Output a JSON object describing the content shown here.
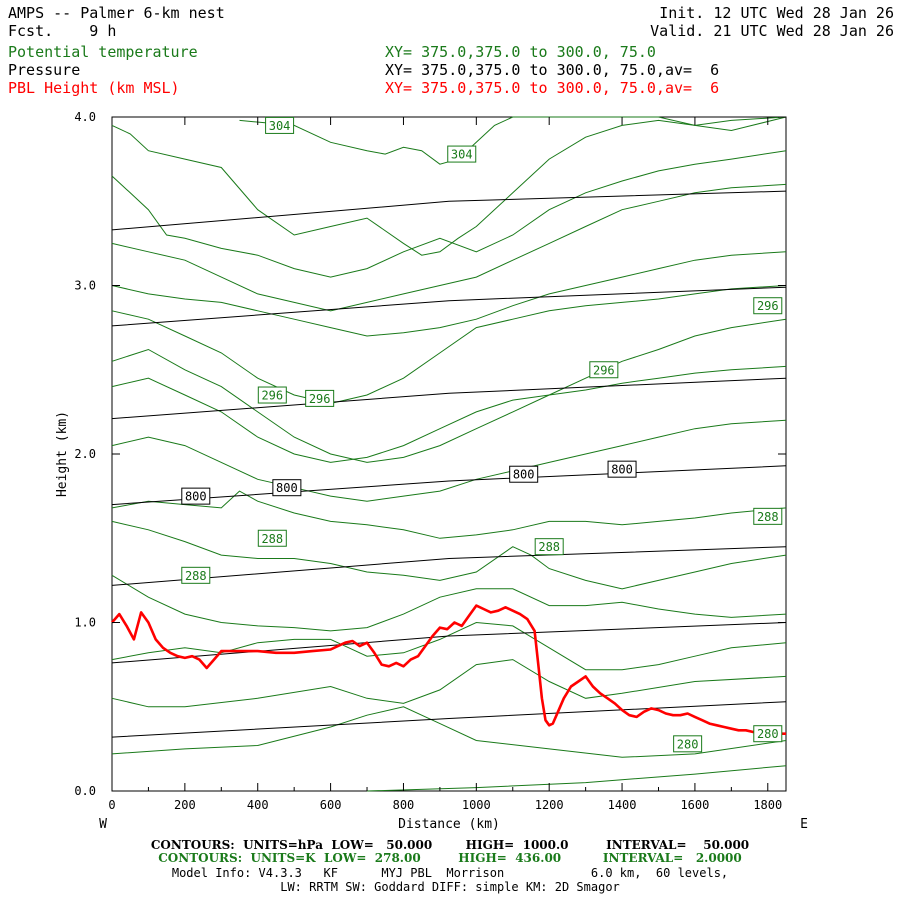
{
  "header": {
    "title": "AMPS -- Palmer 6-km nest",
    "fcst": "Fcst.    9 h",
    "init": "Init. 12 UTC Wed 28 Jan 26",
    "valid": "Valid. 21 UTC Wed 28 Jan 26"
  },
  "legend": [
    {
      "name": "Potential temperature",
      "xy": "XY= 375.0,375.0 to 300.0, 75.0",
      "color": "#1a7a1a"
    },
    {
      "name": "Pressure",
      "xy": "XY= 375.0,375.0 to 300.0, 75.0,av=  6",
      "color": "#000000"
    },
    {
      "name": "PBL Height (km MSL)",
      "xy": "XY= 375.0,375.0 to 300.0, 75.0,av=  6",
      "color": "#ff0000"
    }
  ],
  "footer": {
    "pressure_contours": "CONTOURS:  UNITS=hPa  LOW=   50.000        HIGH=  1000.0         INTERVAL=    50.000",
    "theta_contours": "CONTOURS:  UNITS=K  LOW=  278.00         HIGH=  436.00          INTERVAL=   2.0000",
    "model_info": "Model Info: V4.3.3   KF      MYJ PBL  Morrison            6.0 km,  60 levels,",
    "physics": "LW: RRTM SW: Goddard DIFF: simple KM: 2D Smagor"
  },
  "chart_data": {
    "type": "line",
    "xlabel": "Distance (km)",
    "ylabel": "Height (km)",
    "xlim": [
      0,
      1850
    ],
    "ylim": [
      0,
      4.0
    ],
    "x_ticks": [
      0,
      200,
      400,
      600,
      800,
      1000,
      1200,
      1400,
      1600,
      1800
    ],
    "y_ticks": [
      "0.0",
      "1.0",
      "2.0",
      "3.0",
      "4.0"
    ],
    "y_tick_values": [
      0,
      1,
      2,
      3,
      4
    ],
    "left_end": "W",
    "right_end": "E",
    "colors": {
      "theta": "#1a7a1a",
      "pressure": "#000000",
      "pbl": "#ff0000"
    },
    "pressure_lines": [
      {
        "y": [
          0.32,
          0.43,
          0.53
        ]
      },
      {
        "y": [
          0.76,
          0.92,
          1.0
        ]
      },
      {
        "y": [
          1.22,
          1.38,
          1.45
        ]
      },
      {
        "y": [
          1.7,
          1.84,
          1.93
        ]
      },
      {
        "y": [
          2.21,
          2.36,
          2.45
        ]
      },
      {
        "y": [
          2.76,
          2.91,
          2.99
        ]
      },
      {
        "y": [
          3.33,
          3.5,
          3.56
        ]
      }
    ],
    "pressure_labels": [
      {
        "text": "800",
        "x": 230,
        "y": 1.75
      },
      {
        "text": "800",
        "x": 480,
        "y": 1.8
      },
      {
        "text": "800",
        "x": 1130,
        "y": 1.88
      },
      {
        "text": "800",
        "x": 1400,
        "y": 1.91
      }
    ],
    "theta_lines": [
      {
        "x": [
          700,
          1000,
          1300,
          1600,
          1850
        ],
        "y": [
          0.0,
          0.02,
          0.05,
          0.1,
          0.15
        ]
      },
      {
        "x": [
          0,
          200,
          400,
          600,
          700,
          800,
          900,
          1000,
          1200,
          1400,
          1600,
          1850
        ],
        "y": [
          0.22,
          0.25,
          0.27,
          0.38,
          0.45,
          0.5,
          0.4,
          0.3,
          0.25,
          0.2,
          0.22,
          0.3
        ]
      },
      {
        "x": [
          0,
          100,
          200,
          400,
          600,
          700,
          800,
          900,
          1000,
          1100,
          1200,
          1300,
          1400,
          1600,
          1850
        ],
        "y": [
          0.55,
          0.5,
          0.5,
          0.55,
          0.62,
          0.55,
          0.52,
          0.6,
          0.75,
          0.78,
          0.65,
          0.55,
          0.58,
          0.65,
          0.68
        ]
      },
      {
        "x": [
          0,
          100,
          200,
          300,
          400,
          500,
          600,
          650,
          700,
          800,
          900,
          1000,
          1100,
          1200,
          1300,
          1400,
          1500,
          1600,
          1700,
          1850
        ],
        "y": [
          0.78,
          0.82,
          0.85,
          0.82,
          0.88,
          0.9,
          0.9,
          0.85,
          0.8,
          0.82,
          0.9,
          1.0,
          0.98,
          0.85,
          0.72,
          0.72,
          0.75,
          0.8,
          0.85,
          0.88
        ]
      },
      {
        "x": [
          0,
          100,
          200,
          300,
          400,
          500,
          600,
          700,
          800,
          900,
          1000,
          1100,
          1200,
          1300,
          1400,
          1500,
          1600,
          1700,
          1850
        ],
        "y": [
          1.28,
          1.15,
          1.05,
          1.0,
          0.98,
          0.97,
          0.95,
          0.97,
          1.05,
          1.15,
          1.2,
          1.2,
          1.1,
          1.1,
          1.12,
          1.08,
          1.05,
          1.03,
          1.05
        ]
      },
      {
        "x": [
          0,
          100,
          200,
          300,
          400,
          500,
          600,
          700,
          800,
          900,
          1000,
          1100,
          1150,
          1200,
          1300,
          1400,
          1500,
          1600,
          1700,
          1850
        ],
        "y": [
          1.6,
          1.55,
          1.48,
          1.4,
          1.38,
          1.38,
          1.35,
          1.3,
          1.28,
          1.25,
          1.3,
          1.45,
          1.4,
          1.32,
          1.25,
          1.2,
          1.25,
          1.3,
          1.35,
          1.4
        ]
      },
      {
        "x": [
          0,
          100,
          200,
          300,
          350,
          400,
          500,
          600,
          700,
          800,
          900,
          1000,
          1100,
          1200,
          1300,
          1400,
          1500,
          1600,
          1700,
          1850
        ],
        "y": [
          1.68,
          1.72,
          1.7,
          1.68,
          1.78,
          1.72,
          1.65,
          1.6,
          1.58,
          1.55,
          1.5,
          1.52,
          1.55,
          1.6,
          1.6,
          1.58,
          1.6,
          1.62,
          1.65,
          1.68
        ]
      },
      {
        "x": [
          0,
          100,
          200,
          300,
          400,
          500,
          600,
          700,
          800,
          900,
          1000,
          1100,
          1200,
          1300,
          1400,
          1500,
          1600,
          1700,
          1850
        ],
        "y": [
          2.05,
          2.1,
          2.05,
          1.95,
          1.85,
          1.8,
          1.75,
          1.72,
          1.75,
          1.78,
          1.85,
          1.9,
          1.95,
          2.0,
          2.05,
          2.1,
          2.15,
          2.18,
          2.2
        ]
      },
      {
        "x": [
          0,
          100,
          200,
          300,
          400,
          500,
          600,
          700,
          800,
          900,
          1000,
          1100,
          1200,
          1300,
          1400,
          1500,
          1600,
          1700,
          1850
        ],
        "y": [
          2.4,
          2.45,
          2.35,
          2.25,
          2.1,
          2.0,
          1.95,
          1.98,
          2.05,
          2.15,
          2.25,
          2.32,
          2.35,
          2.38,
          2.42,
          2.45,
          2.48,
          2.5,
          2.52
        ]
      },
      {
        "x": [
          0,
          100,
          200,
          300,
          400,
          500,
          600,
          700,
          800,
          900,
          1000,
          1100,
          1200,
          1300,
          1400,
          1500,
          1600,
          1700,
          1850
        ],
        "y": [
          2.55,
          2.62,
          2.5,
          2.4,
          2.25,
          2.1,
          2.0,
          1.95,
          1.98,
          2.05,
          2.15,
          2.25,
          2.35,
          2.45,
          2.55,
          2.62,
          2.7,
          2.75,
          2.8
        ]
      },
      {
        "x": [
          0,
          100,
          200,
          300,
          400,
          500,
          600,
          700,
          800,
          900,
          1000,
          1100,
          1200,
          1300,
          1400,
          1500,
          1600,
          1700,
          1850
        ],
        "y": [
          2.85,
          2.8,
          2.7,
          2.6,
          2.45,
          2.35,
          2.3,
          2.35,
          2.45,
          2.6,
          2.75,
          2.8,
          2.85,
          2.88,
          2.9,
          2.92,
          2.95,
          2.98,
          3.0
        ]
      },
      {
        "x": [
          0,
          100,
          200,
          300,
          400,
          500,
          600,
          700,
          800,
          900,
          1000,
          1100,
          1200,
          1300,
          1400,
          1500,
          1600,
          1700,
          1850
        ],
        "y": [
          3.0,
          2.95,
          2.92,
          2.9,
          2.85,
          2.8,
          2.75,
          2.7,
          2.72,
          2.75,
          2.8,
          2.88,
          2.95,
          3.0,
          3.05,
          3.1,
          3.15,
          3.18,
          3.2
        ]
      },
      {
        "x": [
          0,
          100,
          200,
          300,
          400,
          500,
          600,
          700,
          800,
          900,
          1000,
          1100,
          1200,
          1300,
          1400,
          1500,
          1600,
          1700,
          1850
        ],
        "y": [
          3.25,
          3.2,
          3.15,
          3.05,
          2.95,
          2.9,
          2.85,
          2.9,
          2.95,
          3.0,
          3.05,
          3.15,
          3.25,
          3.35,
          3.45,
          3.5,
          3.55,
          3.58,
          3.6
        ]
      },
      {
        "x": [
          0,
          50,
          100,
          150,
          200,
          300,
          400,
          500,
          600,
          700,
          800,
          900,
          1000,
          1100,
          1200,
          1300,
          1400,
          1500,
          1600,
          1700,
          1850
        ],
        "y": [
          3.65,
          3.55,
          3.45,
          3.3,
          3.28,
          3.22,
          3.18,
          3.1,
          3.05,
          3.1,
          3.2,
          3.28,
          3.2,
          3.3,
          3.45,
          3.55,
          3.62,
          3.68,
          3.72,
          3.75,
          3.8
        ]
      },
      {
        "x": [
          0,
          50,
          100,
          200,
          300,
          400,
          500,
          600,
          700,
          800,
          850,
          900,
          950,
          1000,
          1100,
          1200,
          1300,
          1400,
          1500,
          1600,
          1700,
          1850
        ],
        "y": [
          3.95,
          3.9,
          3.8,
          3.75,
          3.7,
          3.45,
          3.3,
          3.35,
          3.4,
          3.25,
          3.18,
          3.2,
          3.28,
          3.35,
          3.55,
          3.75,
          3.88,
          3.95,
          3.98,
          3.95,
          3.92,
          4.0
        ]
      },
      {
        "x": [
          350,
          500,
          600,
          700,
          750,
          800,
          850,
          900,
          950,
          1000,
          1050,
          1100,
          1200,
          1300,
          1400,
          1500,
          1600,
          1700,
          1850
        ],
        "y": [
          3.98,
          3.95,
          3.85,
          3.8,
          3.78,
          3.82,
          3.8,
          3.72,
          3.75,
          3.85,
          3.95,
          4.0,
          4.0,
          4.0,
          4.0,
          4.0,
          3.95,
          3.98,
          4.0
        ]
      }
    ],
    "theta_labels": [
      {
        "text": "304",
        "x": 460,
        "y": 3.95
      },
      {
        "text": "304",
        "x": 960,
        "y": 3.78
      },
      {
        "text": "296",
        "x": 1800,
        "y": 2.88
      },
      {
        "text": "296",
        "x": 1350,
        "y": 2.5
      },
      {
        "text": "296",
        "x": 440,
        "y": 2.35
      },
      {
        "text": "296",
        "x": 570,
        "y": 2.33
      },
      {
        "text": "288",
        "x": 1800,
        "y": 1.63
      },
      {
        "text": "288",
        "x": 1200,
        "y": 1.45
      },
      {
        "text": "288",
        "x": 440,
        "y": 1.5
      },
      {
        "text": "288",
        "x": 230,
        "y": 1.28
      },
      {
        "text": "280",
        "x": 1580,
        "y": 0.28
      },
      {
        "text": "280",
        "x": 1800,
        "y": 0.34
      }
    ],
    "pbl": {
      "x": [
        0,
        20,
        40,
        60,
        80,
        100,
        120,
        140,
        160,
        180,
        200,
        220,
        240,
        260,
        280,
        300,
        350,
        400,
        450,
        500,
        550,
        600,
        620,
        640,
        660,
        680,
        700,
        720,
        740,
        760,
        780,
        800,
        820,
        840,
        860,
        880,
        900,
        920,
        940,
        960,
        980,
        1000,
        1020,
        1040,
        1060,
        1080,
        1100,
        1120,
        1140,
        1160,
        1170,
        1180,
        1190,
        1200,
        1210,
        1220,
        1240,
        1260,
        1280,
        1300,
        1320,
        1340,
        1360,
        1380,
        1400,
        1420,
        1440,
        1460,
        1480,
        1500,
        1520,
        1540,
        1560,
        1580,
        1600,
        1620,
        1640,
        1660,
        1680,
        1700,
        1720,
        1740,
        1760,
        1780,
        1800,
        1820,
        1850
      ],
      "y": [
        1.0,
        1.05,
        0.98,
        0.9,
        1.06,
        1.0,
        0.9,
        0.85,
        0.82,
        0.8,
        0.79,
        0.8,
        0.78,
        0.73,
        0.78,
        0.83,
        0.83,
        0.83,
        0.82,
        0.82,
        0.83,
        0.84,
        0.86,
        0.88,
        0.89,
        0.86,
        0.88,
        0.82,
        0.75,
        0.74,
        0.76,
        0.74,
        0.78,
        0.8,
        0.86,
        0.92,
        0.97,
        0.96,
        1.0,
        0.98,
        1.04,
        1.1,
        1.08,
        1.06,
        1.07,
        1.09,
        1.07,
        1.05,
        1.02,
        0.95,
        0.75,
        0.55,
        0.42,
        0.39,
        0.4,
        0.45,
        0.55,
        0.62,
        0.65,
        0.68,
        0.62,
        0.58,
        0.55,
        0.52,
        0.48,
        0.45,
        0.44,
        0.47,
        0.49,
        0.48,
        0.46,
        0.45,
        0.45,
        0.46,
        0.44,
        0.42,
        0.4,
        0.39,
        0.38,
        0.37,
        0.36,
        0.36,
        0.35,
        0.35,
        0.34,
        0.34,
        0.34
      ]
    }
  }
}
